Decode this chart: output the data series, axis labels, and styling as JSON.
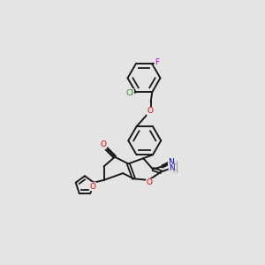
{
  "background_color": "#e4e4e4",
  "bond_color": "#1a1a1a",
  "atom_colors": {
    "O": "#dd0000",
    "N": "#0000cc",
    "Cl": "#228822",
    "F": "#cc00cc",
    "C": "#1a1a1a",
    "H": "#888888"
  },
  "figsize": [
    3.0,
    3.0
  ],
  "dpi": 100
}
